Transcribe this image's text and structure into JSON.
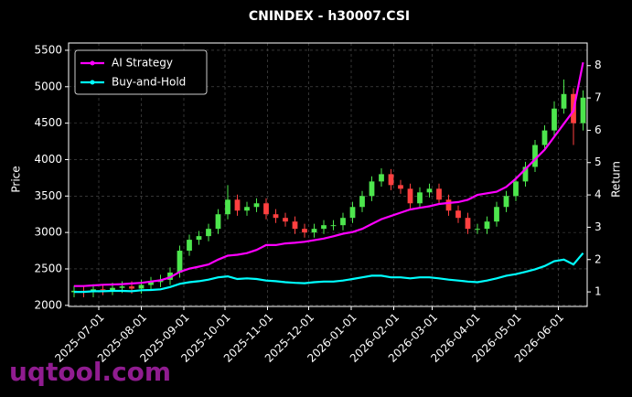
{
  "chart_data": {
    "type": "candlestick",
    "title": "CNINDEX - h30007.CSI",
    "ylabel": "Price",
    "y2label": "Return",
    "watermark": "uqtool.com",
    "background": "#000000",
    "up_color": "#4de64d",
    "down_color": "#ff4040",
    "grid": true,
    "legend": "upper left",
    "x": [
      "2025-06-13",
      "2025-06-20",
      "2025-06-27",
      "2025-07-04",
      "2025-07-11",
      "2025-07-18",
      "2025-07-25",
      "2025-08-01",
      "2025-08-08",
      "2025-08-15",
      "2025-08-22",
      "2025-08-29",
      "2025-09-05",
      "2025-09-12",
      "2025-09-19",
      "2025-09-26",
      "2025-10-03",
      "2025-10-10",
      "2025-10-17",
      "2025-10-24",
      "2025-10-31",
      "2025-11-07",
      "2025-11-14",
      "2025-11-21",
      "2025-11-28",
      "2025-12-05",
      "2025-12-12",
      "2025-12-19",
      "2025-12-26",
      "2026-01-02",
      "2026-01-09",
      "2026-01-16",
      "2026-01-23",
      "2026-01-30",
      "2026-02-06",
      "2026-02-13",
      "2026-02-20",
      "2026-02-27",
      "2026-03-06",
      "2026-03-13",
      "2026-03-20",
      "2026-03-27",
      "2026-04-03",
      "2026-04-10",
      "2026-04-17",
      "2026-04-24",
      "2026-05-01",
      "2026-05-08",
      "2026-05-15",
      "2026-05-22",
      "2026-05-29",
      "2026-06-05",
      "2026-06-12",
      "2026-06-19"
    ],
    "open": [
      2180,
      2200,
      2180,
      2220,
      2210,
      2240,
      2260,
      2230,
      2280,
      2320,
      2350,
      2450,
      2750,
      2900,
      2950,
      3050,
      3250,
      3450,
      3300,
      3350,
      3400,
      3250,
      3200,
      3150,
      3050,
      3000,
      3050,
      3100,
      3100,
      3200,
      3350,
      3500,
      3700,
      3800,
      3650,
      3600,
      3400,
      3550,
      3600,
      3450,
      3300,
      3200,
      3050,
      3050,
      3150,
      3350,
      3500,
      3700,
      3900,
      4200,
      4400,
      4700,
      4900,
      4500
    ],
    "high": [
      2270,
      2270,
      2290,
      2290,
      2310,
      2330,
      2330,
      2350,
      2390,
      2420,
      2520,
      2820,
      2970,
      3020,
      3120,
      3320,
      3650,
      3520,
      3420,
      3470,
      3470,
      3320,
      3270,
      3220,
      3120,
      3120,
      3170,
      3170,
      3270,
      3420,
      3570,
      3770,
      3880,
      3870,
      3720,
      3670,
      3620,
      3670,
      3670,
      3520,
      3370,
      3270,
      3120,
      3220,
      3420,
      3570,
      3770,
      3970,
      4270,
      4470,
      4800,
      5100,
      4980,
      4950
    ],
    "low": [
      2110,
      2110,
      2110,
      2140,
      2140,
      2170,
      2160,
      2160,
      2210,
      2250,
      2280,
      2380,
      2680,
      2830,
      2880,
      2980,
      3180,
      3230,
      3230,
      3280,
      3180,
      3130,
      3080,
      2980,
      2930,
      2930,
      2980,
      3030,
      3030,
      3130,
      3280,
      3430,
      3630,
      3580,
      3530,
      3330,
      3330,
      3480,
      3380,
      3230,
      3130,
      2980,
      2980,
      2980,
      3080,
      3280,
      3430,
      3630,
      3830,
      4130,
      4330,
      4630,
      4200,
      4400
    ],
    "close": [
      2200,
      2180,
      2220,
      2210,
      2240,
      2260,
      2230,
      2280,
      2320,
      2350,
      2450,
      2750,
      2900,
      2950,
      3050,
      3250,
      3450,
      3300,
      3350,
      3400,
      3250,
      3200,
      3150,
      3050,
      3000,
      3050,
      3100,
      3100,
      3200,
      3350,
      3500,
      3700,
      3800,
      3650,
      3600,
      3400,
      3550,
      3600,
      3450,
      3300,
      3200,
      3050,
      3050,
      3150,
      3350,
      3500,
      3700,
      3900,
      4200,
      4400,
      4700,
      4900,
      4500,
      4850
    ],
    "series": [
      {
        "name": "AI Strategy",
        "color": "#ff00ff",
        "axis": "y2",
        "values": [
          1.18,
          1.18,
          1.2,
          1.22,
          1.23,
          1.24,
          1.26,
          1.28,
          1.32,
          1.36,
          1.45,
          1.62,
          1.72,
          1.78,
          1.85,
          2.0,
          2.12,
          2.15,
          2.2,
          2.3,
          2.45,
          2.45,
          2.5,
          2.52,
          2.55,
          2.6,
          2.65,
          2.72,
          2.8,
          2.85,
          2.95,
          3.1,
          3.25,
          3.35,
          3.45,
          3.55,
          3.6,
          3.65,
          3.72,
          3.75,
          3.78,
          3.85,
          4.0,
          4.05,
          4.1,
          4.25,
          4.5,
          4.8,
          5.1,
          5.4,
          5.8,
          6.2,
          6.6,
          8.1
        ]
      },
      {
        "name": "Buy-and-Hold",
        "color": "#00ffff",
        "axis": "y2",
        "values": [
          1.0,
          1.0,
          1.02,
          1.02,
          1.03,
          1.03,
          1.02,
          1.05,
          1.06,
          1.08,
          1.15,
          1.25,
          1.3,
          1.33,
          1.38,
          1.45,
          1.48,
          1.4,
          1.42,
          1.4,
          1.35,
          1.33,
          1.3,
          1.28,
          1.27,
          1.3,
          1.32,
          1.32,
          1.35,
          1.4,
          1.45,
          1.5,
          1.5,
          1.45,
          1.45,
          1.42,
          1.45,
          1.45,
          1.42,
          1.38,
          1.35,
          1.32,
          1.3,
          1.35,
          1.42,
          1.5,
          1.55,
          1.62,
          1.7,
          1.8,
          1.95,
          2.0,
          1.85,
          2.2
        ]
      }
    ],
    "xlim": [
      "2025-06-09",
      "2026-06-22"
    ],
    "xticks": [
      "2025-07-01",
      "2025-08-01",
      "2025-09-01",
      "2025-10-01",
      "2025-11-01",
      "2025-12-01",
      "2026-01-01",
      "2026-02-01",
      "2026-03-01",
      "2026-04-01",
      "2026-05-01",
      "2026-06-01"
    ],
    "ylim": [
      1985,
      5600
    ],
    "yticks": [
      2000,
      2500,
      3000,
      3500,
      4000,
      4500,
      5000,
      5500
    ],
    "y2lim": [
      0.55,
      8.7
    ],
    "y2ticks": [
      1,
      2,
      3,
      4,
      5,
      6,
      7,
      8
    ]
  }
}
